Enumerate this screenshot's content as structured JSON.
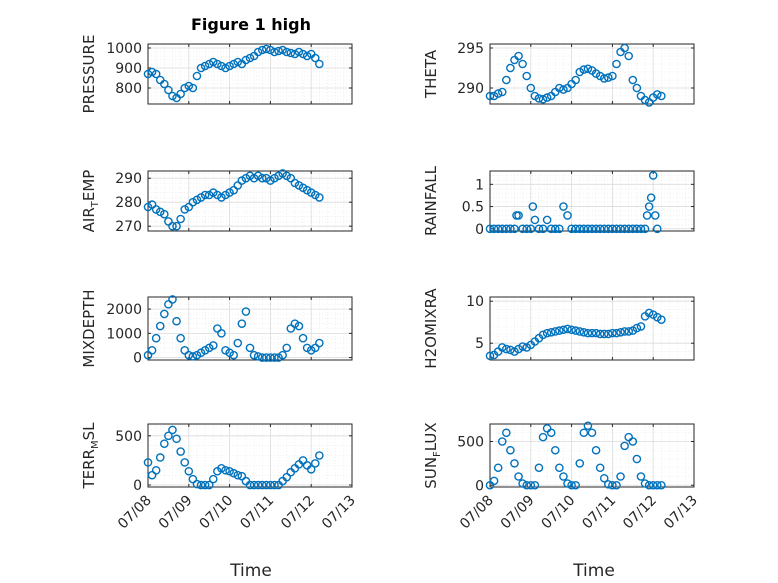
{
  "figure": {
    "title": "Figure 1 high",
    "xlabel": "Time",
    "x_ticks": [
      "07/08",
      "07/09",
      "07/10",
      "07/11",
      "07/12",
      "07/13"
    ],
    "marker_color": "#0072bd"
  },
  "chart_data": [
    {
      "type": "scatter",
      "title": "Figure 1 high",
      "ylabel": "PRESSURE",
      "ylabel_sub": null,
      "xlim": [
        0,
        5
      ],
      "ylim": [
        720,
        1020
      ],
      "yticks": [
        800,
        900,
        1000
      ],
      "grid": true,
      "x": [
        0.0,
        0.1,
        0.2,
        0.3,
        0.4,
        0.5,
        0.6,
        0.7,
        0.8,
        0.9,
        1.0,
        1.1,
        1.2,
        1.3,
        1.4,
        1.5,
        1.6,
        1.7,
        1.8,
        1.9,
        2.0,
        2.1,
        2.2,
        2.3,
        2.4,
        2.5,
        2.6,
        2.7,
        2.8,
        2.9,
        3.0,
        3.1,
        3.2,
        3.3,
        3.4,
        3.5,
        3.6,
        3.7,
        3.8,
        3.9,
        4.0,
        4.1,
        4.2
      ],
      "y": [
        870,
        880,
        870,
        840,
        820,
        790,
        760,
        750,
        770,
        800,
        810,
        800,
        860,
        900,
        910,
        920,
        930,
        920,
        910,
        900,
        910,
        920,
        930,
        920,
        940,
        950,
        960,
        980,
        990,
        995,
        990,
        980,
        985,
        990,
        980,
        975,
        970,
        980,
        970,
        960,
        970,
        950,
        920
      ]
    },
    {
      "type": "scatter",
      "ylabel": "THETA",
      "ylabel_sub": null,
      "xlim": [
        0,
        5
      ],
      "ylim": [
        288,
        295.5
      ],
      "yticks": [
        290,
        295
      ],
      "grid": true,
      "x": [
        0.0,
        0.1,
        0.2,
        0.3,
        0.4,
        0.5,
        0.6,
        0.7,
        0.8,
        0.9,
        1.0,
        1.1,
        1.2,
        1.3,
        1.4,
        1.5,
        1.6,
        1.7,
        1.8,
        1.9,
        2.0,
        2.1,
        2.2,
        2.3,
        2.4,
        2.5,
        2.6,
        2.7,
        2.8,
        2.9,
        3.0,
        3.1,
        3.2,
        3.3,
        3.4,
        3.5,
        3.6,
        3.7,
        3.8,
        3.9,
        4.0,
        4.1,
        4.2
      ],
      "y": [
        289,
        289,
        289.3,
        289.5,
        291,
        292.5,
        293.5,
        294,
        293,
        291.5,
        290,
        289,
        288.7,
        288.6,
        288.8,
        289,
        289.5,
        290,
        289.8,
        290,
        290.5,
        291,
        292,
        292.3,
        292.4,
        292.2,
        291.8,
        291.5,
        291.2,
        291.3,
        291.5,
        293,
        294.5,
        295,
        294,
        291,
        290,
        289,
        288.5,
        288.2,
        288.8,
        289.2,
        289
      ]
    },
    {
      "type": "scatter",
      "ylabel": "AIR",
      "ylabel_sub": "T",
      "ylabel_suffix": "EMP",
      "xlim": [
        0,
        5
      ],
      "ylim": [
        268,
        293
      ],
      "yticks": [
        270,
        280,
        290
      ],
      "grid": true,
      "x": [
        0.0,
        0.1,
        0.2,
        0.3,
        0.4,
        0.5,
        0.6,
        0.7,
        0.8,
        0.9,
        1.0,
        1.1,
        1.2,
        1.3,
        1.4,
        1.5,
        1.6,
        1.7,
        1.8,
        1.9,
        2.0,
        2.1,
        2.2,
        2.3,
        2.4,
        2.5,
        2.6,
        2.7,
        2.8,
        2.9,
        3.0,
        3.1,
        3.2,
        3.3,
        3.4,
        3.5,
        3.6,
        3.7,
        3.8,
        3.9,
        4.0,
        4.1,
        4.2
      ],
      "y": [
        278,
        279,
        277,
        276,
        275,
        272,
        270,
        270,
        273,
        277,
        278,
        280,
        281,
        282,
        283,
        283,
        284,
        283,
        282,
        283,
        284,
        285,
        287,
        289,
        290,
        291,
        290,
        291,
        290,
        290,
        289,
        290,
        291,
        292,
        291,
        290,
        288,
        287,
        286,
        285,
        284,
        283,
        282
      ]
    },
    {
      "type": "scatter",
      "ylabel": "RAINFALL",
      "ylabel_sub": null,
      "xlim": [
        0,
        5
      ],
      "ylim": [
        -0.05,
        1.3
      ],
      "yticks": [
        0,
        0.5,
        1
      ],
      "ytick_labels": [
        "0",
        "0.5",
        "1"
      ],
      "grid": true,
      "x": [
        0.0,
        0.1,
        0.2,
        0.3,
        0.4,
        0.5,
        0.6,
        0.65,
        0.7,
        0.8,
        0.9,
        1.0,
        1.05,
        1.1,
        1.2,
        1.3,
        1.4,
        1.5,
        1.6,
        1.7,
        1.8,
        1.9,
        2.0,
        2.1,
        2.2,
        2.3,
        2.4,
        2.5,
        2.6,
        2.7,
        2.8,
        2.9,
        3.0,
        3.1,
        3.2,
        3.3,
        3.4,
        3.5,
        3.6,
        3.7,
        3.8,
        3.85,
        3.9,
        3.95,
        4.0,
        4.05,
        4.1
      ],
      "y": [
        0,
        0,
        0,
        0,
        0,
        0,
        0,
        0.3,
        0.3,
        0,
        0,
        0,
        0.5,
        0.2,
        0,
        0,
        0.2,
        0,
        0,
        0,
        0.5,
        0.3,
        0,
        0,
        0,
        0,
        0,
        0,
        0,
        0,
        0,
        0,
        0,
        0,
        0,
        0,
        0,
        0,
        0,
        0,
        0,
        0.3,
        0.5,
        0.7,
        1.2,
        0.3,
        0
      ]
    },
    {
      "type": "scatter",
      "ylabel": "MIXDEPTH",
      "ylabel_sub": null,
      "xlim": [
        0,
        5
      ],
      "ylim": [
        -100,
        2500
      ],
      "yticks": [
        0,
        1000,
        2000
      ],
      "grid": true,
      "x": [
        0.0,
        0.1,
        0.2,
        0.3,
        0.4,
        0.5,
        0.6,
        0.7,
        0.8,
        0.9,
        1.0,
        1.1,
        1.2,
        1.3,
        1.4,
        1.5,
        1.6,
        1.7,
        1.8,
        1.9,
        2.0,
        2.1,
        2.2,
        2.3,
        2.4,
        2.5,
        2.6,
        2.7,
        2.8,
        2.9,
        3.0,
        3.1,
        3.2,
        3.3,
        3.4,
        3.5,
        3.6,
        3.7,
        3.8,
        3.9,
        4.0,
        4.1,
        4.2
      ],
      "y": [
        100,
        300,
        800,
        1300,
        1800,
        2200,
        2400,
        1500,
        800,
        300,
        100,
        50,
        100,
        200,
        300,
        400,
        500,
        1200,
        1000,
        300,
        200,
        100,
        600,
        1400,
        1900,
        400,
        100,
        50,
        0,
        0,
        0,
        0,
        0,
        100,
        400,
        1200,
        1400,
        1300,
        800,
        400,
        300,
        400,
        600
      ]
    },
    {
      "type": "scatter",
      "ylabel": "H2OMIXRA",
      "ylabel_sub": null,
      "xlim": [
        0,
        5
      ],
      "ylim": [
        3,
        10.5
      ],
      "yticks": [
        5,
        10
      ],
      "grid": true,
      "x": [
        0.0,
        0.1,
        0.2,
        0.3,
        0.4,
        0.5,
        0.6,
        0.7,
        0.8,
        0.9,
        1.0,
        1.1,
        1.2,
        1.3,
        1.4,
        1.5,
        1.6,
        1.7,
        1.8,
        1.9,
        2.0,
        2.1,
        2.2,
        2.3,
        2.4,
        2.5,
        2.6,
        2.7,
        2.8,
        2.9,
        3.0,
        3.1,
        3.2,
        3.3,
        3.4,
        3.5,
        3.6,
        3.7,
        3.8,
        3.9,
        4.0,
        4.1,
        4.2
      ],
      "y": [
        3.5,
        3.6,
        4,
        4.5,
        4.3,
        4.2,
        4.0,
        4.3,
        4.6,
        4.5,
        4.8,
        5.2,
        5.6,
        6,
        6.2,
        6.3,
        6.4,
        6.5,
        6.6,
        6.7,
        6.6,
        6.5,
        6.4,
        6.3,
        6.2,
        6.2,
        6.2,
        6.1,
        6.1,
        6.1,
        6.2,
        6.2,
        6.3,
        6.4,
        6.4,
        6.5,
        6.8,
        7,
        8.2,
        8.6,
        8.4,
        8.1,
        7.8
      ]
    },
    {
      "type": "scatter",
      "ylabel": "TERR",
      "ylabel_sub": "M",
      "ylabel_suffix": "SL",
      "xlim": [
        0,
        5
      ],
      "ylim": [
        -20,
        620
      ],
      "yticks": [
        0,
        500
      ],
      "grid": true,
      "x": [
        0.0,
        0.1,
        0.2,
        0.3,
        0.4,
        0.5,
        0.6,
        0.7,
        0.8,
        0.9,
        1.0,
        1.1,
        1.2,
        1.3,
        1.4,
        1.5,
        1.6,
        1.7,
        1.8,
        1.9,
        2.0,
        2.1,
        2.2,
        2.3,
        2.4,
        2.5,
        2.6,
        2.7,
        2.8,
        2.9,
        3.0,
        3.1,
        3.2,
        3.3,
        3.4,
        3.5,
        3.6,
        3.7,
        3.8,
        3.9,
        4.0,
        4.1,
        4.2
      ],
      "y": [
        230,
        100,
        150,
        280,
        420,
        500,
        560,
        470,
        340,
        230,
        140,
        60,
        10,
        0,
        0,
        0,
        60,
        140,
        170,
        150,
        140,
        120,
        100,
        90,
        40,
        0,
        0,
        0,
        0,
        0,
        0,
        0,
        0,
        40,
        80,
        130,
        170,
        210,
        250,
        200,
        160,
        220,
        300
      ]
    },
    {
      "type": "scatter",
      "ylabel": "SUN",
      "ylabel_sub": "F",
      "ylabel_suffix": "LUX",
      "xlim": [
        0,
        5
      ],
      "ylim": [
        -20,
        700
      ],
      "yticks": [
        0,
        500
      ],
      "grid": true,
      "x": [
        0.0,
        0.1,
        0.2,
        0.3,
        0.4,
        0.5,
        0.6,
        0.7,
        0.8,
        0.9,
        1.0,
        1.1,
        1.2,
        1.3,
        1.4,
        1.5,
        1.6,
        1.7,
        1.8,
        1.9,
        2.0,
        2.1,
        2.2,
        2.3,
        2.4,
        2.5,
        2.6,
        2.7,
        2.8,
        2.9,
        3.0,
        3.1,
        3.2,
        3.3,
        3.4,
        3.5,
        3.6,
        3.7,
        3.8,
        3.9,
        4.0,
        4.1,
        4.2
      ],
      "y": [
        0,
        50,
        200,
        500,
        600,
        400,
        250,
        100,
        20,
        0,
        0,
        0,
        200,
        550,
        650,
        600,
        400,
        200,
        100,
        20,
        0,
        0,
        250,
        600,
        680,
        600,
        400,
        200,
        80,
        10,
        0,
        0,
        100,
        450,
        550,
        500,
        300,
        100,
        20,
        0,
        0,
        0,
        0
      ]
    }
  ]
}
